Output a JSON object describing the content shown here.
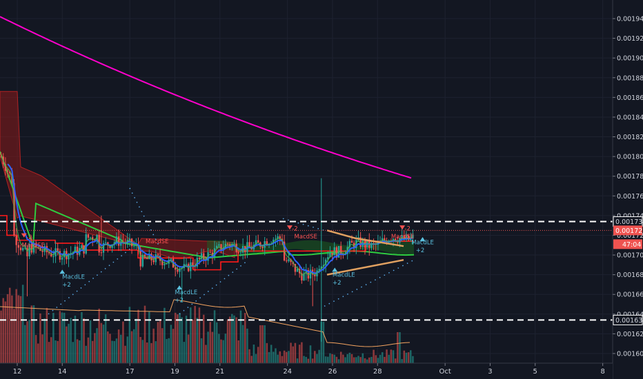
{
  "chart_data": {
    "type": "candlestick",
    "y_axis": {
      "ticks": [
        "0.001600",
        "0.001620",
        "0.001640",
        "0.001660",
        "0.001680",
        "0.001700",
        "0.001720",
        "0.001740",
        "0.001760",
        "0.001780",
        "0.001800",
        "0.001820",
        "0.001840",
        "0.001860",
        "0.001880",
        "0.001900",
        "0.001920",
        "0.001940"
      ],
      "range": [
        0.001595,
        0.001952
      ]
    },
    "x_axis": {
      "ticks": [
        "12",
        "14",
        "17",
        "19",
        "21",
        "24",
        "26",
        "28",
        "Oct",
        "3",
        "5",
        "8"
      ]
    },
    "price_badges": [
      {
        "label": "0.001734",
        "value": 0.001734,
        "style": "outline"
      },
      {
        "label": "0.001725",
        "value": 0.001725,
        "style": "red"
      },
      {
        "label": "47:04",
        "value": 0.001711,
        "style": "red"
      },
      {
        "label": "0.001634",
        "value": 0.001634,
        "style": "outline"
      }
    ],
    "horizontal_levels": [
      0.001734,
      0.001634
    ],
    "current_price_line": 0.001725,
    "signals": [
      {
        "text": "MacdLE",
        "x_day": 14,
        "y": 0.001676,
        "color": "#5bc0de"
      },
      {
        "text": "+2",
        "x_day": 14,
        "y": 0.001668,
        "color": "#5bc0de"
      },
      {
        "text": "MacdLE",
        "x_day": 19,
        "y": 0.00166,
        "color": "#5bc0de"
      },
      {
        "text": "+2",
        "x_day": 19,
        "y": 0.001652,
        "color": "#5bc0de"
      },
      {
        "text": "MacdLE",
        "x_day": 26,
        "y": 0.001678,
        "color": "#5bc0de"
      },
      {
        "text": "+2",
        "x_day": 26,
        "y": 0.00167,
        "color": "#5bc0de"
      },
      {
        "text": "MacdLE",
        "x_day": 29.5,
        "y": 0.001711,
        "color": "#5bc0de"
      },
      {
        "text": "+2",
        "x_day": 29.7,
        "y": 0.001703,
        "color": "#5bc0de"
      },
      {
        "text": "MacdSE",
        "x_day": 12.2,
        "y": 0.001708,
        "color": "#ff5252"
      },
      {
        "text": "-2",
        "x_day": 12.4,
        "y": 0.001716,
        "color": "#ff5252"
      },
      {
        "text": "MacdSE",
        "x_day": 17.7,
        "y": 0.001712,
        "color": "#ff5252"
      },
      {
        "text": "MacdSE",
        "x_day": 24.3,
        "y": 0.001717,
        "color": "#ff5252"
      },
      {
        "text": "-2",
        "x_day": 24.2,
        "y": 0.001725,
        "color": "#ff5252"
      },
      {
        "text": "MacdSE",
        "x_day": 28.6,
        "y": 0.001717,
        "color": "#ff5252"
      },
      {
        "text": "-2",
        "x_day": 29.2,
        "y": 0.001725,
        "color": "#ff5252"
      }
    ],
    "grid": true,
    "colors": {
      "background": "#131722",
      "grid": "#1e2230",
      "up": "#26a69a",
      "down": "#ef5350",
      "ma_long": "#ff00cc",
      "ma_mid": "#2ecc40",
      "ma_fast": "#2962ff",
      "cloud": "#8b1a1a",
      "channel_red": "#ff1a1a",
      "triangle": "#e0a060",
      "volume_ma": "#f4a460",
      "dots": "#5aa9e6"
    }
  }
}
